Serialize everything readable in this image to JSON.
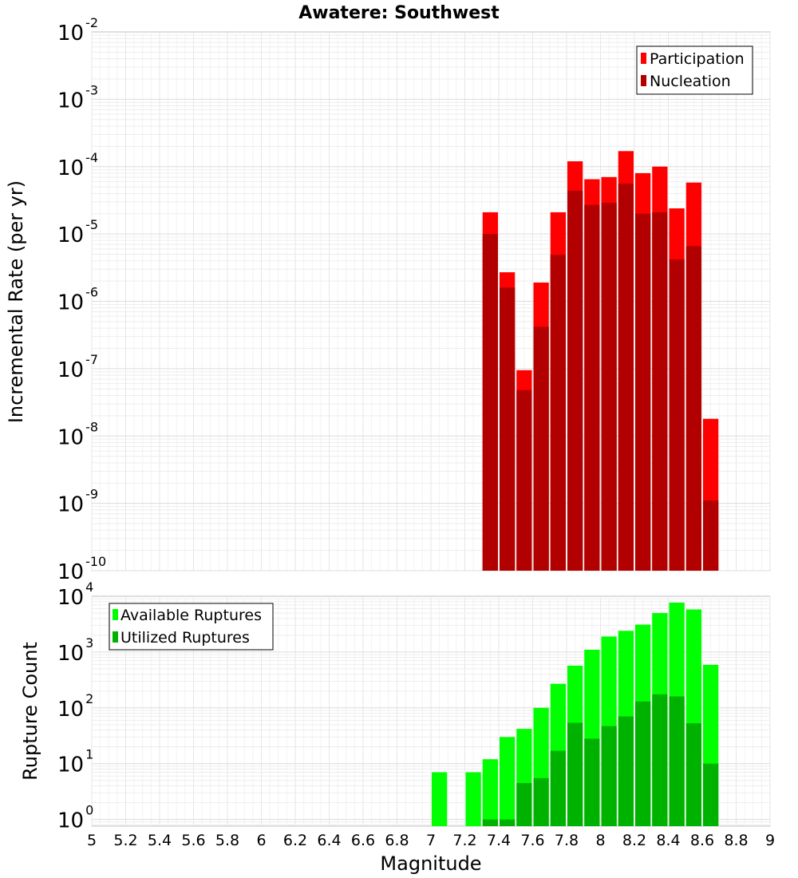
{
  "chart_data": [
    {
      "type": "bar",
      "title": "Awatere: Southwest",
      "xlabel": "Magnitude",
      "ylabel": "Incremental Rate (per yr)",
      "yscale": "log",
      "ylim_exponents": [
        -10,
        -2
      ],
      "xlim": [
        5,
        9
      ],
      "bar_width": 0.1,
      "grid": true,
      "legend_placement": "top-right",
      "legend": [
        {
          "label": "Participation",
          "color": "#ff0000"
        },
        {
          "label": "Nucleation",
          "color": "#b20000"
        }
      ],
      "x": [
        7.35,
        7.45,
        7.55,
        7.65,
        7.75,
        7.85,
        7.95,
        8.05,
        8.15,
        8.25,
        8.35,
        8.45,
        8.55,
        8.65
      ],
      "series": [
        {
          "name": "Participation",
          "color": "#ff0000",
          "values": [
            2.1e-05,
            2.7e-06,
            9.5e-08,
            1.9e-06,
            2.1e-05,
            0.00012,
            6.5e-05,
            7e-05,
            0.00017,
            8e-05,
            0.0001,
            2.4e-05,
            5.8e-05,
            1.8e-08
          ]
        },
        {
          "name": "Nucleation",
          "color": "#b20000",
          "values": [
            1e-05,
            1.6e-06,
            4.8e-08,
            4.2e-07,
            4.9e-06,
            4.4e-05,
            2.7e-05,
            2.9e-05,
            5.6e-05,
            2e-05,
            2.1e-05,
            4.2e-06,
            6.6e-06,
            1.1e-09
          ]
        }
      ]
    },
    {
      "type": "bar",
      "xlabel": "Magnitude",
      "ylabel": "Rupture Count",
      "yscale": "log",
      "ylim_exponents": [
        -0.12,
        4
      ],
      "xlim": [
        5,
        9
      ],
      "bar_width": 0.1,
      "grid": true,
      "legend_placement": "top-left",
      "legend": [
        {
          "label": "Available Ruptures",
          "color": "#00ff00"
        },
        {
          "label": "Utilized Ruptures",
          "color": "#00b200"
        }
      ],
      "x_ticks": [
        "5",
        "5.2",
        "5.4",
        "5.6",
        "5.8",
        "6",
        "6.2",
        "6.4",
        "6.6",
        "6.8",
        "7",
        "7.2",
        "7.4",
        "7.6",
        "7.8",
        "8",
        "8.2",
        "8.4",
        "8.6",
        "8.8",
        "9"
      ],
      "x": [
        7.05,
        7.25,
        7.35,
        7.45,
        7.55,
        7.65,
        7.75,
        7.85,
        7.95,
        8.05,
        8.15,
        8.25,
        8.35,
        8.45,
        8.55,
        8.65
      ],
      "series": [
        {
          "name": "Available Ruptures",
          "color": "#00ff00",
          "values": [
            7,
            7,
            12,
            30,
            42,
            100,
            270,
            570,
            1100,
            1900,
            2400,
            3100,
            5000,
            7700,
            5800,
            590
          ]
        },
        {
          "name": "Utilized Ruptures",
          "color": "#00b200",
          "values": [
            null,
            null,
            1,
            1,
            4.5,
            5.5,
            17,
            54,
            28,
            47,
            70,
            130,
            175,
            160,
            53,
            10
          ]
        }
      ]
    }
  ]
}
